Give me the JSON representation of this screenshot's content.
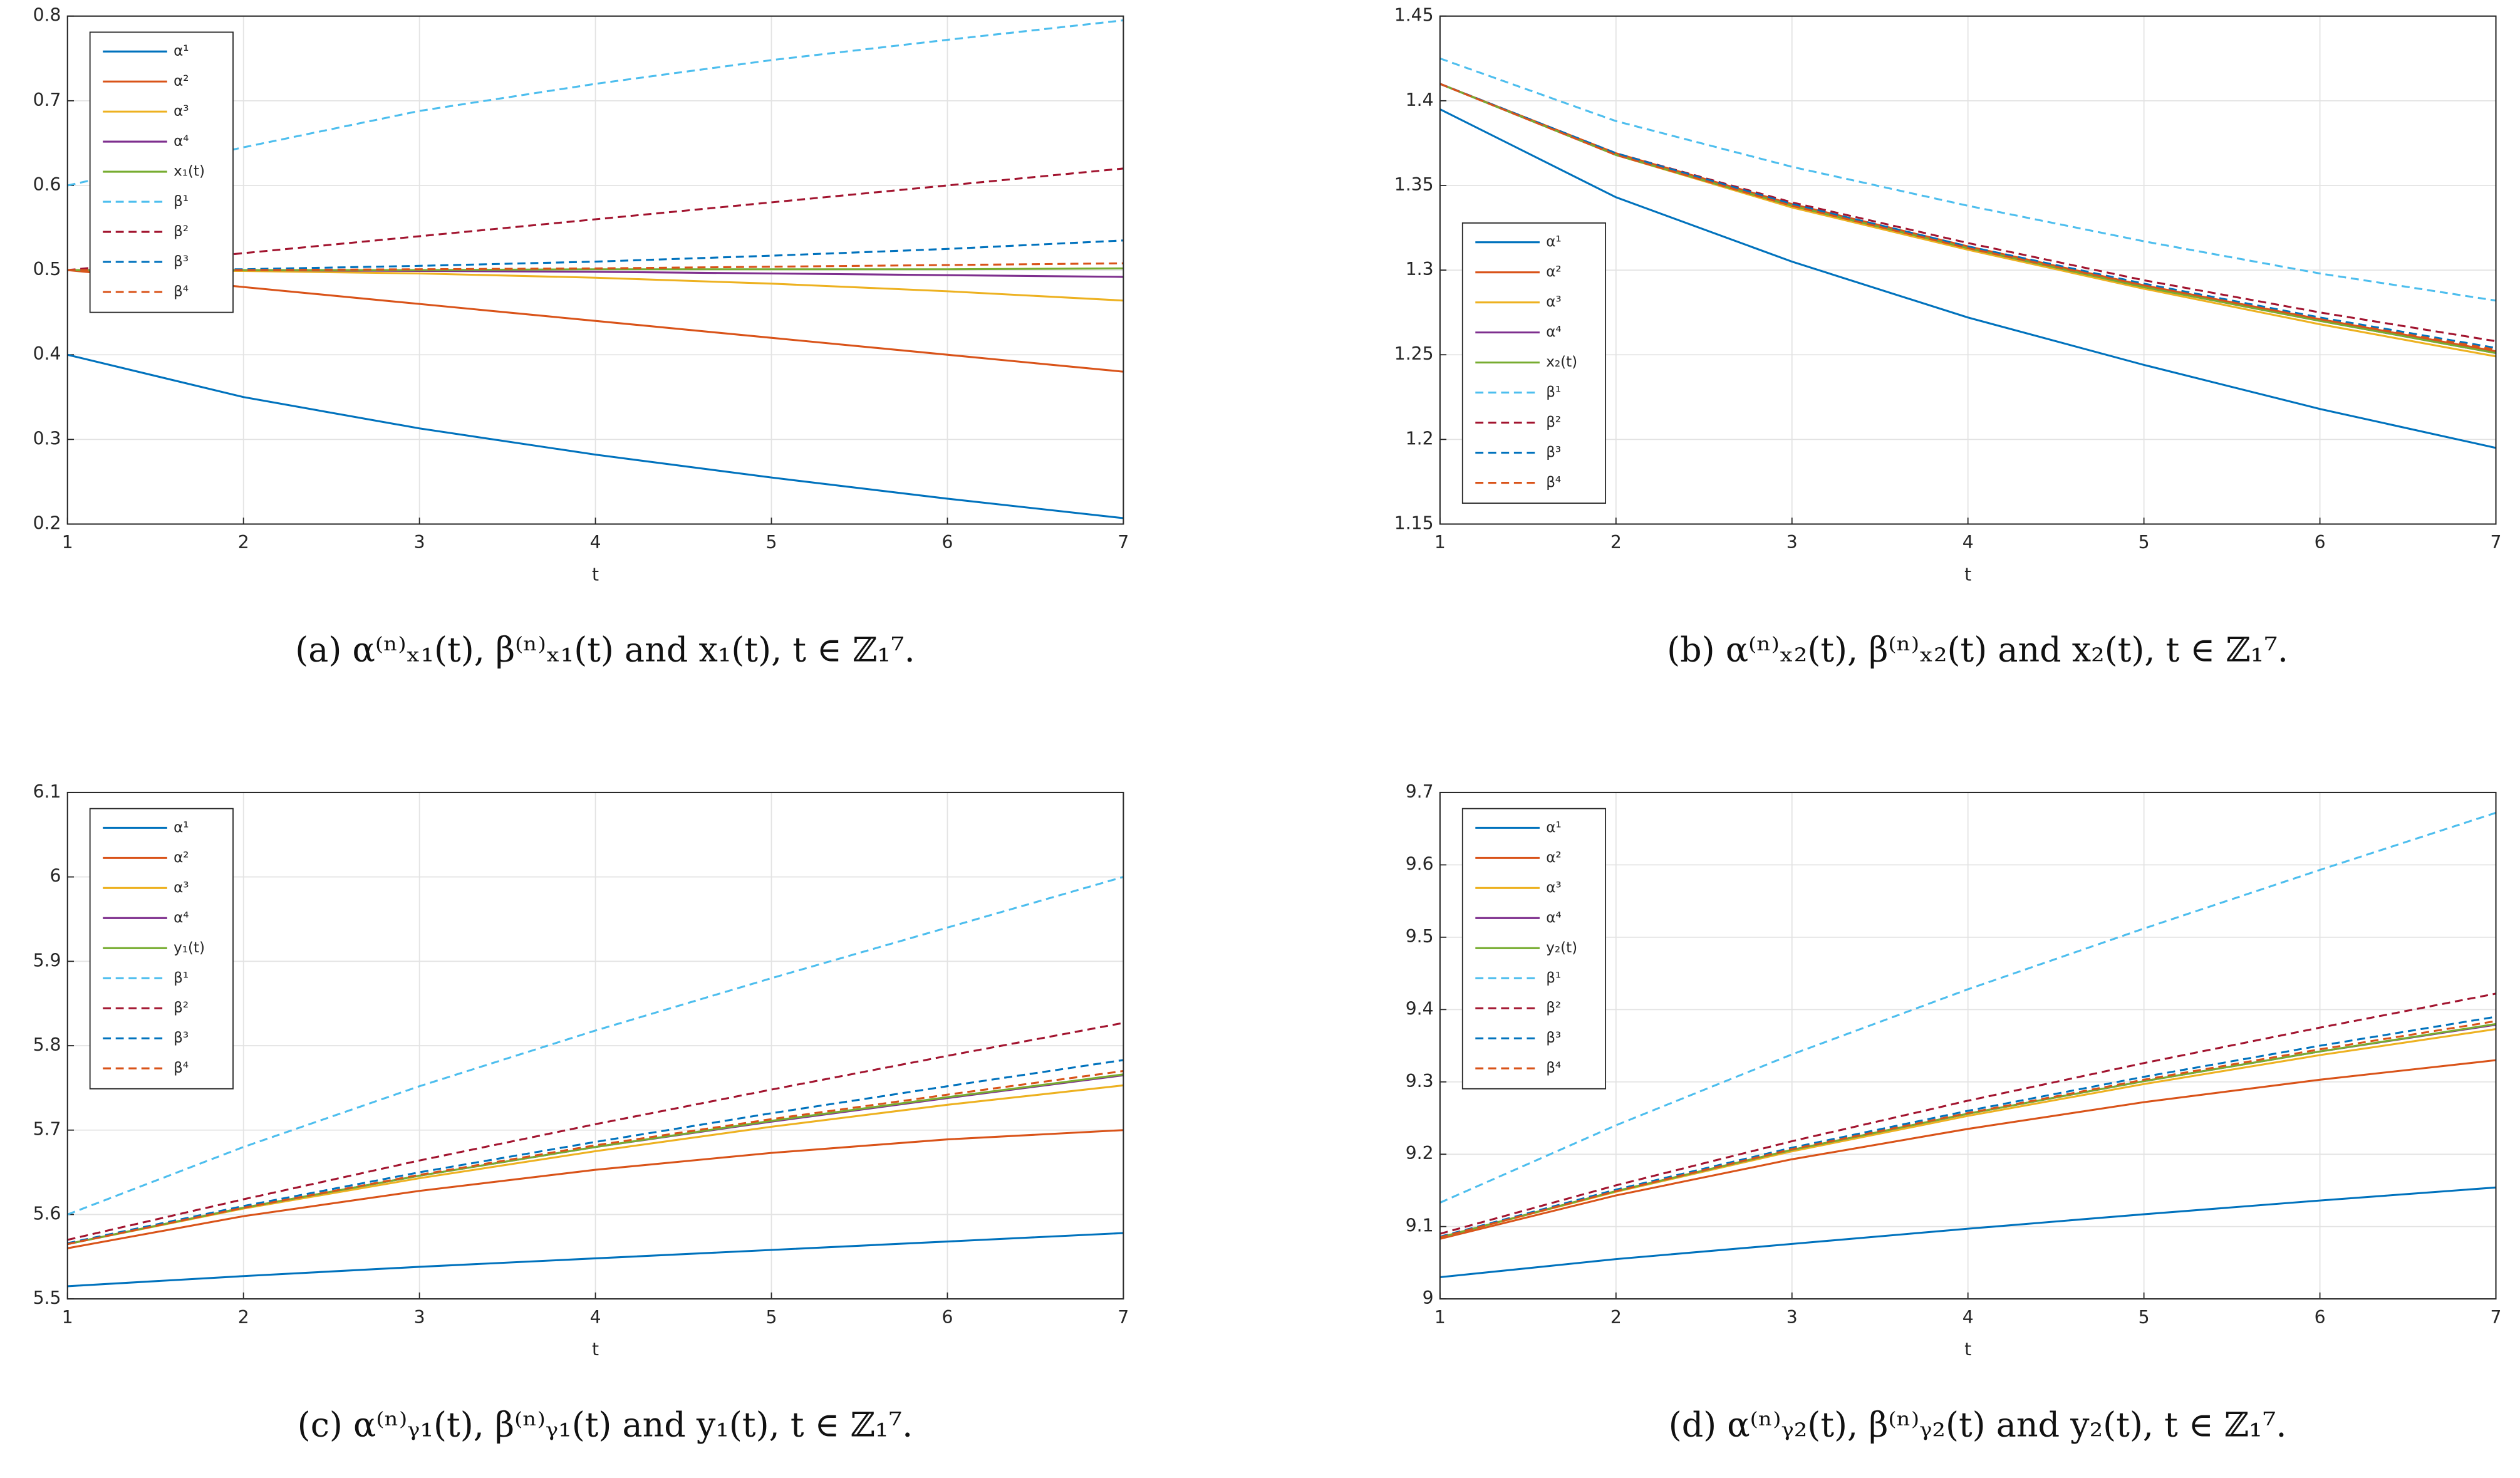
{
  "chart_data": [
    {
      "type": "line",
      "caption": "(a) α⁽ⁿ⁾ₓ₁(t), β⁽ⁿ⁾ₓ₁(t) and x₁(t), t ∈ ℤ₁⁷.",
      "xlabel": "t",
      "x": [
        1,
        2,
        3,
        4,
        5,
        6,
        7
      ],
      "xlim": [
        1,
        7
      ],
      "xticks": [
        1,
        2,
        3,
        4,
        5,
        6,
        7
      ],
      "ylim": [
        0.2,
        0.8
      ],
      "yticks": [
        0.2,
        0.3,
        0.4,
        0.5,
        0.6,
        0.7,
        0.8
      ],
      "grid": true,
      "legend": "upper left",
      "series": [
        {
          "name": "α¹",
          "color": "#0072BD",
          "style": "solid",
          "values": [
            0.4,
            0.35,
            0.313,
            0.282,
            0.255,
            0.23,
            0.207
          ]
        },
        {
          "name": "α²",
          "color": "#D95319",
          "style": "solid",
          "values": [
            0.5,
            0.48,
            0.46,
            0.44,
            0.42,
            0.4,
            0.38
          ]
        },
        {
          "name": "α³",
          "color": "#EDB120",
          "style": "solid",
          "values": [
            0.5,
            0.499,
            0.496,
            0.491,
            0.484,
            0.475,
            0.464
          ]
        },
        {
          "name": "α⁴",
          "color": "#7E2F8E",
          "style": "solid",
          "values": [
            0.5,
            0.5,
            0.499,
            0.498,
            0.496,
            0.494,
            0.492
          ]
        },
        {
          "name": "x₁(t)",
          "color": "#77AC30",
          "style": "solid",
          "values": [
            0.5,
            0.5,
            0.5,
            0.501,
            0.501,
            0.501,
            0.502
          ]
        },
        {
          "name": "β¹",
          "color": "#4DBEEE",
          "style": "dashed",
          "values": [
            0.6,
            0.645,
            0.688,
            0.72,
            0.748,
            0.772,
            0.795
          ]
        },
        {
          "name": "β²",
          "color": "#A2142F",
          "style": "dashed",
          "values": [
            0.5,
            0.52,
            0.54,
            0.56,
            0.58,
            0.6,
            0.62
          ]
        },
        {
          "name": "β³",
          "color": "#0072BD",
          "style": "dashed",
          "values": [
            0.5,
            0.501,
            0.505,
            0.51,
            0.517,
            0.525,
            0.535
          ]
        },
        {
          "name": "β⁴",
          "color": "#D95319",
          "style": "dashed",
          "values": [
            0.5,
            0.5,
            0.501,
            0.502,
            0.504,
            0.506,
            0.508
          ]
        }
      ]
    },
    {
      "type": "line",
      "caption": "(b) α⁽ⁿ⁾ₓ₂(t), β⁽ⁿ⁾ₓ₂(t) and x₂(t), t ∈ ℤ₁⁷.",
      "xlabel": "t",
      "x": [
        1,
        2,
        3,
        4,
        5,
        6,
        7
      ],
      "xlim": [
        1,
        7
      ],
      "xticks": [
        1,
        2,
        3,
        4,
        5,
        6,
        7
      ],
      "ylim": [
        1.15,
        1.45
      ],
      "yticks": [
        1.15,
        1.2,
        1.25,
        1.3,
        1.35,
        1.4,
        1.45
      ],
      "grid": true,
      "legend": "lower left",
      "series": [
        {
          "name": "α¹",
          "color": "#0072BD",
          "style": "solid",
          "values": [
            1.395,
            1.343,
            1.305,
            1.272,
            1.244,
            1.218,
            1.195
          ]
        },
        {
          "name": "α²",
          "color": "#D95319",
          "style": "solid",
          "values": [
            1.41,
            1.369,
            1.339,
            1.314,
            1.291,
            1.271,
            1.252
          ]
        },
        {
          "name": "α³",
          "color": "#EDB120",
          "style": "solid",
          "values": [
            1.41,
            1.368,
            1.337,
            1.312,
            1.289,
            1.268,
            1.249
          ]
        },
        {
          "name": "α⁴",
          "color": "#7E2F8E",
          "style": "solid",
          "values": [
            1.41,
            1.368,
            1.338,
            1.313,
            1.29,
            1.27,
            1.251
          ]
        },
        {
          "name": "x₂(t)",
          "color": "#77AC30",
          "style": "solid",
          "values": [
            1.41,
            1.368,
            1.338,
            1.313,
            1.29,
            1.27,
            1.251
          ]
        },
        {
          "name": "β¹",
          "color": "#4DBEEE",
          "style": "dashed",
          "values": [
            1.425,
            1.388,
            1.361,
            1.338,
            1.317,
            1.298,
            1.282
          ]
        },
        {
          "name": "β²",
          "color": "#A2142F",
          "style": "dashed",
          "values": [
            1.41,
            1.369,
            1.34,
            1.316,
            1.294,
            1.275,
            1.258
          ]
        },
        {
          "name": "β³",
          "color": "#0072BD",
          "style": "dashed",
          "values": [
            1.41,
            1.369,
            1.339,
            1.314,
            1.292,
            1.272,
            1.254
          ]
        },
        {
          "name": "β⁴",
          "color": "#D95319",
          "style": "dashed",
          "values": [
            1.41,
            1.368,
            1.338,
            1.313,
            1.291,
            1.271,
            1.253
          ]
        }
      ]
    },
    {
      "type": "line",
      "caption": "(c) α⁽ⁿ⁾ᵧ₁(t), β⁽ⁿ⁾ᵧ₁(t) and y₁(t), t ∈ ℤ₁⁷.",
      "xlabel": "t",
      "x": [
        1,
        2,
        3,
        4,
        5,
        6,
        7
      ],
      "xlim": [
        1,
        7
      ],
      "xticks": [
        1,
        2,
        3,
        4,
        5,
        6,
        7
      ],
      "ylim": [
        5.5,
        6.1
      ],
      "yticks": [
        5.5,
        5.6,
        5.7,
        5.8,
        5.9,
        6,
        6.1
      ],
      "grid": true,
      "legend": "upper left",
      "series": [
        {
          "name": "α¹",
          "color": "#0072BD",
          "style": "solid",
          "values": [
            5.515,
            5.527,
            5.538,
            5.548,
            5.558,
            5.568,
            5.578
          ]
        },
        {
          "name": "α²",
          "color": "#D95319",
          "style": "solid",
          "values": [
            5.56,
            5.598,
            5.628,
            5.653,
            5.673,
            5.689,
            5.7
          ]
        },
        {
          "name": "α³",
          "color": "#EDB120",
          "style": "solid",
          "values": [
            5.565,
            5.607,
            5.643,
            5.675,
            5.704,
            5.73,
            5.753
          ]
        },
        {
          "name": "α⁴",
          "color": "#7E2F8E",
          "style": "solid",
          "values": [
            5.565,
            5.608,
            5.646,
            5.68,
            5.71,
            5.738,
            5.765
          ]
        },
        {
          "name": "y₁(t)",
          "color": "#77AC30",
          "style": "solid",
          "values": [
            5.565,
            5.608,
            5.646,
            5.68,
            5.711,
            5.739,
            5.766
          ]
        },
        {
          "name": "β¹",
          "color": "#4DBEEE",
          "style": "dashed",
          "values": [
            5.6,
            5.68,
            5.752,
            5.818,
            5.88,
            5.94,
            6.0
          ]
        },
        {
          "name": "β²",
          "color": "#A2142F",
          "style": "dashed",
          "values": [
            5.57,
            5.618,
            5.664,
            5.707,
            5.748,
            5.788,
            5.827
          ]
        },
        {
          "name": "β³",
          "color": "#0072BD",
          "style": "dashed",
          "values": [
            5.566,
            5.61,
            5.65,
            5.686,
            5.72,
            5.752,
            5.783
          ]
        },
        {
          "name": "β⁴",
          "color": "#D95319",
          "style": "dashed",
          "values": [
            5.565,
            5.608,
            5.647,
            5.682,
            5.713,
            5.742,
            5.77
          ]
        }
      ]
    },
    {
      "type": "line",
      "caption": "(d) α⁽ⁿ⁾ᵧ₂(t), β⁽ⁿ⁾ᵧ₂(t) and y₂(t), t ∈ ℤ₁⁷.",
      "xlabel": "t",
      "x": [
        1,
        2,
        3,
        4,
        5,
        6,
        7
      ],
      "xlim": [
        1,
        7
      ],
      "xticks": [
        1,
        2,
        3,
        4,
        5,
        6,
        7
      ],
      "ylim": [
        9,
        9.7
      ],
      "yticks": [
        9,
        9.1,
        9.2,
        9.3,
        9.4,
        9.5,
        9.6,
        9.7
      ],
      "grid": true,
      "legend": "upper left",
      "series": [
        {
          "name": "α¹",
          "color": "#0072BD",
          "style": "solid",
          "values": [
            9.03,
            9.055,
            9.076,
            9.097,
            9.117,
            9.136,
            9.154
          ]
        },
        {
          "name": "α²",
          "color": "#D95319",
          "style": "solid",
          "values": [
            9.083,
            9.143,
            9.193,
            9.235,
            9.272,
            9.303,
            9.33
          ]
        },
        {
          "name": "α³",
          "color": "#EDB120",
          "style": "solid",
          "values": [
            9.085,
            9.148,
            9.204,
            9.253,
            9.297,
            9.337,
            9.373
          ]
        },
        {
          "name": "α⁴",
          "color": "#7E2F8E",
          "style": "solid",
          "values": [
            9.085,
            9.149,
            9.206,
            9.256,
            9.301,
            9.342,
            9.379
          ]
        },
        {
          "name": "y₂(t)",
          "color": "#77AC30",
          "style": "solid",
          "values": [
            9.085,
            9.149,
            9.206,
            9.256,
            9.301,
            9.342,
            9.38
          ]
        },
        {
          "name": "β¹",
          "color": "#4DBEEE",
          "style": "dashed",
          "values": [
            9.133,
            9.24,
            9.338,
            9.428,
            9.512,
            9.593,
            9.672
          ]
        },
        {
          "name": "β²",
          "color": "#A2142F",
          "style": "dashed",
          "values": [
            9.09,
            9.157,
            9.218,
            9.274,
            9.326,
            9.375,
            9.422
          ]
        },
        {
          "name": "β³",
          "color": "#0072BD",
          "style": "dashed",
          "values": [
            9.086,
            9.151,
            9.209,
            9.26,
            9.307,
            9.35,
            9.39
          ]
        },
        {
          "name": "β⁴",
          "color": "#D95319",
          "style": "dashed",
          "values": [
            9.085,
            9.149,
            9.207,
            9.257,
            9.303,
            9.345,
            9.384
          ]
        }
      ]
    }
  ]
}
